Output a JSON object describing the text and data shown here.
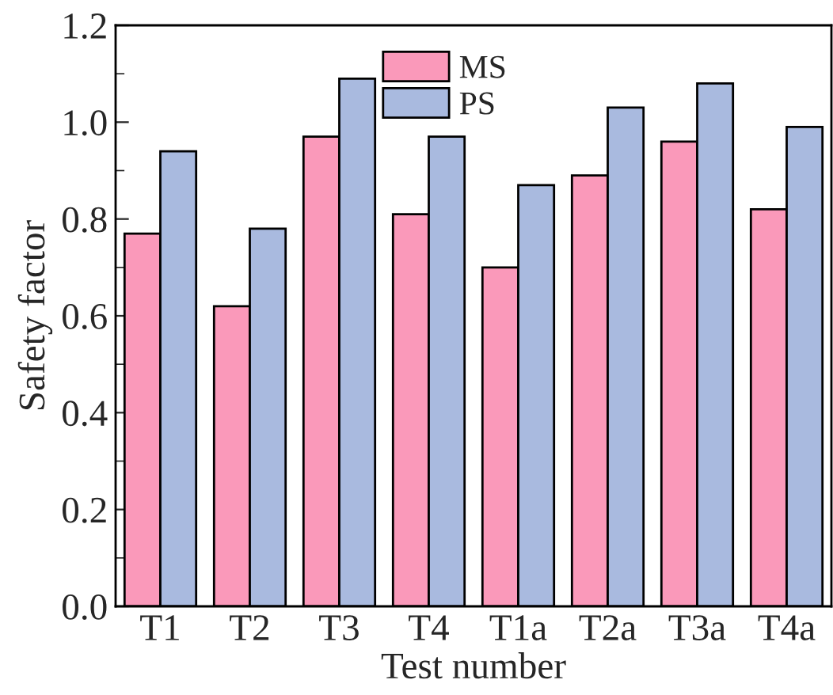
{
  "chart_data": {
    "type": "bar",
    "xlabel": "Test number",
    "ylabel": "Safety factor",
    "categories": [
      "T1",
      "T2",
      "T3",
      "T4",
      "T1a",
      "T2a",
      "T3a",
      "T4a"
    ],
    "series": [
      {
        "name": "MS",
        "color": "#fa99ba",
        "values": [
          0.77,
          0.62,
          0.97,
          0.81,
          0.7,
          0.89,
          0.96,
          0.82
        ]
      },
      {
        "name": "PS",
        "color": "#a9badf",
        "values": [
          0.94,
          0.78,
          1.09,
          0.97,
          0.87,
          1.03,
          1.08,
          0.99
        ]
      }
    ],
    "ylim": [
      0,
      1.2
    ],
    "yticks": [
      {
        "value": 0,
        "label": "0.0"
      },
      {
        "value": 0.2,
        "label": "0.2"
      },
      {
        "value": 0.4,
        "label": "0.4"
      },
      {
        "value": 0.6,
        "label": "0.6"
      },
      {
        "value": 0.8,
        "label": "0.8"
      },
      {
        "value": 1.0,
        "label": "1.0"
      },
      {
        "value": 1.2,
        "label": "1.2"
      }
    ],
    "legend": "top",
    "grid": false
  }
}
